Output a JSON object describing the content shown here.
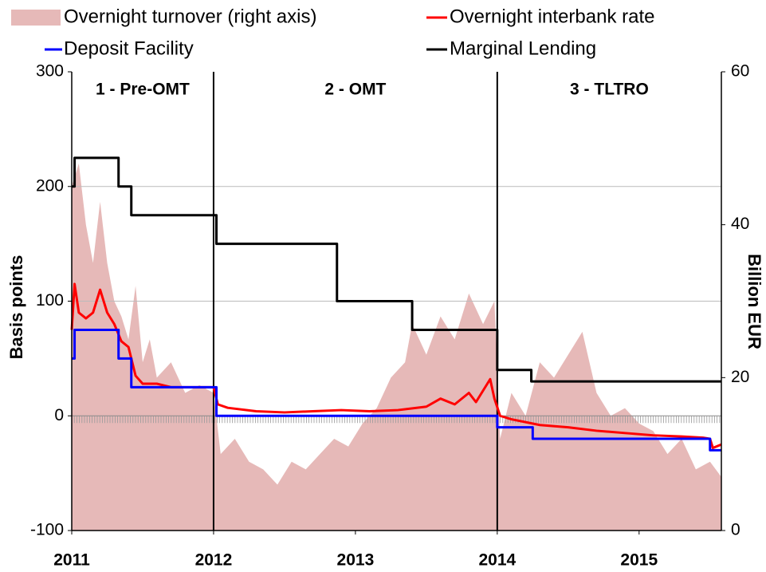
{
  "chart_data": {
    "type": "line",
    "xlim": [
      2011,
      2015.58
    ],
    "xticks": [
      2011,
      2012,
      2013,
      2014,
      2015
    ],
    "ylim": [
      -100,
      300
    ],
    "yticks": [
      -100,
      0,
      100,
      200,
      300
    ],
    "y2lim": [
      0,
      60
    ],
    "y2ticks": [
      0,
      20,
      40,
      60
    ],
    "ylabel": "Basis points",
    "y2label": "Billion  EUR",
    "grid": true,
    "periods": [
      {
        "label": "1 - Pre-OMT",
        "start": 2011,
        "end": 2012
      },
      {
        "label": "2 - OMT",
        "start": 2012,
        "end": 2014
      },
      {
        "label": "3 - TLTRO",
        "start": 2014,
        "end": 2015.58
      }
    ],
    "series": [
      {
        "name": "Overnight turnover (right axis)",
        "type": "area",
        "axis": "y2",
        "color": "#e6b9b8",
        "x": [
          2011.0,
          2011.05,
          2011.1,
          2011.15,
          2011.2,
          2011.25,
          2011.3,
          2011.35,
          2011.4,
          2011.45,
          2011.5,
          2011.55,
          2011.6,
          2011.7,
          2011.8,
          2011.9,
          2012.0,
          2012.05,
          2012.15,
          2012.25,
          2012.35,
          2012.45,
          2012.55,
          2012.65,
          2012.75,
          2012.85,
          2012.95,
          2013.05,
          2013.15,
          2013.25,
          2013.35,
          2013.4,
          2013.5,
          2013.6,
          2013.7,
          2013.8,
          2013.9,
          2013.98,
          2014.02,
          2014.1,
          2014.2,
          2014.3,
          2014.4,
          2014.5,
          2014.6,
          2014.7,
          2014.8,
          2014.9,
          2015.0,
          2015.1,
          2015.2,
          2015.3,
          2015.4,
          2015.5,
          2015.58
        ],
        "values": [
          45,
          48,
          40,
          35,
          43,
          35,
          30,
          28,
          25,
          32,
          22,
          25,
          20,
          22,
          18,
          19,
          18,
          10,
          12,
          9,
          8,
          6,
          9,
          8,
          10,
          12,
          11,
          14,
          16,
          20,
          22,
          27,
          23,
          28,
          25,
          31,
          27,
          30,
          12,
          18,
          15,
          22,
          20,
          23,
          26,
          18,
          15,
          16,
          14,
          13,
          10,
          12,
          8,
          9,
          7
        ]
      },
      {
        "name": "Overnight interbank rate",
        "type": "line",
        "color": "#ff0000",
        "x": [
          2011.0,
          2011.02,
          2011.05,
          2011.1,
          2011.15,
          2011.2,
          2011.25,
          2011.3,
          2011.35,
          2011.4,
          2011.45,
          2011.5,
          2011.6,
          2011.7,
          2011.8,
          2011.9,
          2012.0,
          2012.03,
          2012.1,
          2012.3,
          2012.5,
          2012.7,
          2012.9,
          2013.1,
          2013.3,
          2013.5,
          2013.6,
          2013.7,
          2013.8,
          2013.85,
          2013.95,
          2013.98,
          2014.02,
          2014.1,
          2014.3,
          2014.5,
          2014.7,
          2014.9,
          2015.1,
          2015.3,
          2015.45,
          2015.5,
          2015.52,
          2015.58
        ],
        "values": [
          75,
          115,
          90,
          85,
          90,
          110,
          90,
          80,
          65,
          60,
          35,
          28,
          28,
          25,
          25,
          25,
          25,
          10,
          7,
          4,
          3,
          4,
          5,
          4,
          5,
          8,
          15,
          10,
          20,
          12,
          32,
          15,
          0,
          -3,
          -8,
          -10,
          -13,
          -15,
          -17,
          -18,
          -19,
          -20,
          -28,
          -25
        ]
      },
      {
        "name": "Deposit Facility",
        "type": "line",
        "color": "#0000ff",
        "x": [
          2011.0,
          2011.02,
          2011.02,
          2011.33,
          2011.33,
          2011.42,
          2011.42,
          2012.02,
          2012.02,
          2014.0,
          2014.0,
          2014.25,
          2014.25,
          2015.5,
          2015.5,
          2015.58
        ],
        "values": [
          50,
          50,
          75,
          75,
          50,
          50,
          25,
          25,
          0,
          0,
          -10,
          -10,
          -20,
          -20,
          -30,
          -30
        ]
      },
      {
        "name": "Marginal Lending",
        "type": "line",
        "color": "#000000",
        "x": [
          2011.0,
          2011.02,
          2011.02,
          2011.33,
          2011.33,
          2011.42,
          2011.42,
          2012.02,
          2012.02,
          2012.87,
          2012.87,
          2013.4,
          2013.4,
          2014.0,
          2014.0,
          2014.24,
          2014.24,
          2015.58
        ],
        "values": [
          200,
          200,
          225,
          225,
          200,
          200,
          175,
          175,
          150,
          150,
          100,
          100,
          75,
          75,
          40,
          40,
          30,
          30
        ]
      }
    ]
  }
}
